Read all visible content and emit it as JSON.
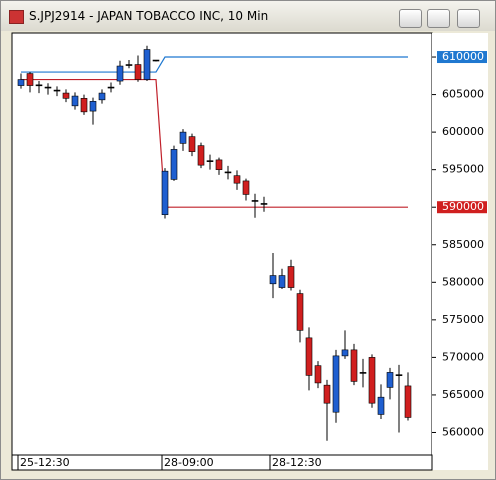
{
  "window": {
    "title": "S.JPJ2914 - JAPAN TOBACCO INC, 10 Min"
  },
  "chart_data": {
    "type": "candlestick",
    "categories": [
      "25-12:30",
      null,
      null,
      null,
      null,
      null,
      null,
      null,
      null,
      null,
      null,
      null,
      null,
      null,
      null,
      null,
      "28-09:00",
      null,
      null,
      null,
      null,
      null,
      null,
      null,
      null,
      null,
      null,
      null,
      "28-12:30",
      null,
      null,
      null,
      null,
      null,
      null,
      null,
      null,
      null,
      null,
      null,
      null,
      null,
      null,
      null
    ],
    "open": [
      606200,
      607800,
      606300,
      606000,
      605600,
      605200,
      603500,
      604500,
      602800,
      604300,
      606000,
      606800,
      609000,
      609000,
      607000,
      609600,
      589000,
      593700,
      598500,
      599400,
      598200,
      596200,
      596300,
      594700,
      594200,
      593500,
      590900,
      590500,
      579800,
      579300,
      582100,
      578500,
      572600,
      568900,
      566300,
      562700,
      570200,
      571000,
      568000,
      570000,
      562400,
      566000,
      567700,
      566200
    ],
    "high": [
      607800,
      608000,
      606800,
      606500,
      606100,
      605700,
      605300,
      605000,
      604600,
      605700,
      606600,
      609500,
      609600,
      610200,
      611500,
      609600,
      595200,
      598200,
      600400,
      599800,
      598600,
      597000,
      596600,
      595500,
      594900,
      593800,
      591800,
      591400,
      583900,
      581800,
      583000,
      579000,
      574000,
      569500,
      567000,
      571000,
      573600,
      571800,
      569800,
      570400,
      566400,
      568600,
      569000,
      568000
    ],
    "low": [
      605800,
      605300,
      605200,
      605000,
      604800,
      604000,
      603000,
      602300,
      601000,
      603800,
      605300,
      606300,
      608500,
      606700,
      606800,
      609400,
      588500,
      593500,
      597500,
      596800,
      595200,
      595000,
      594300,
      593700,
      592300,
      590900,
      588600,
      589400,
      577900,
      579100,
      578900,
      572000,
      565600,
      565900,
      558900,
      561300,
      569800,
      566300,
      566000,
      563300,
      561800,
      564400,
      560000,
      561600
    ],
    "close": [
      607000,
      606200,
      606300,
      606000,
      605600,
      604500,
      604800,
      602700,
      604100,
      605200,
      606000,
      608800,
      609000,
      607000,
      611000,
      609600,
      594800,
      597700,
      600000,
      597400,
      595600,
      596200,
      595000,
      594700,
      593200,
      591700,
      590900,
      590500,
      580900,
      580900,
      579300,
      573600,
      567600,
      566600,
      563900,
      570200,
      571000,
      566800,
      568000,
      563900,
      564700,
      568000,
      567700,
      562000
    ],
    "up_color": "#1f5fd0",
    "down_color": "#d01f1f",
    "doji_color": "#000000",
    "lines": [
      {
        "color": "#1f78d0",
        "values": [
          608000,
          608000,
          608000,
          608000,
          608000,
          608000,
          608000,
          608000,
          608000,
          608000,
          608000,
          608000,
          608000,
          608000,
          608000,
          608000,
          610000,
          610000,
          610000,
          610000,
          610000,
          610000,
          610000,
          610000,
          610000,
          610000,
          610000,
          610000,
          610000,
          610000,
          610000,
          610000,
          610000,
          610000,
          610000,
          610000,
          610000,
          610000,
          610000,
          610000,
          610000,
          610000,
          610000,
          610000
        ]
      },
      {
        "color": "#c0202a",
        "values": [
          607000,
          607000,
          607000,
          607000,
          607000,
          607000,
          607000,
          607000,
          607000,
          607000,
          607000,
          607000,
          607000,
          607000,
          607000,
          607000,
          590000,
          590000,
          590000,
          590000,
          590000,
          590000,
          590000,
          590000,
          590000,
          590000,
          590000,
          590000,
          590000,
          590000,
          590000,
          590000,
          590000,
          590000,
          590000,
          590000,
          590000,
          590000,
          590000,
          590000,
          590000,
          590000,
          590000,
          590000
        ]
      }
    ],
    "price_tags": [
      {
        "value": 610000,
        "color": "#1f78d0"
      },
      {
        "value": 590000,
        "color": "#d01f1f"
      }
    ],
    "ylim": [
      557000,
      613200
    ],
    "yticks": [
      560000,
      565000,
      570000,
      575000,
      580000,
      585000,
      590000,
      595000,
      600000,
      605000,
      610000
    ]
  }
}
